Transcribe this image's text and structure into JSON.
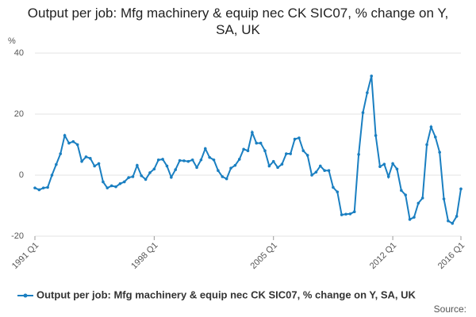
{
  "chart_data": {
    "type": "line",
    "title": "Output per job: Mfg machinery & equip nec CK SIC07, % change on Y, SA, UK",
    "y_label": "%",
    "source": "Source:",
    "categories": [
      "1991 Q1",
      null,
      null,
      null,
      null,
      null,
      null,
      null,
      null,
      null,
      null,
      null,
      null,
      null,
      null,
      null,
      null,
      null,
      null,
      null,
      null,
      null,
      null,
      null,
      null,
      null,
      null,
      null,
      "1998 Q1",
      null,
      null,
      null,
      null,
      null,
      null,
      null,
      null,
      null,
      null,
      null,
      null,
      null,
      null,
      null,
      null,
      null,
      null,
      null,
      null,
      null,
      null,
      null,
      null,
      null,
      null,
      null,
      "2005 Q1",
      null,
      null,
      null,
      null,
      null,
      null,
      null,
      null,
      null,
      null,
      null,
      null,
      null,
      null,
      null,
      null,
      null,
      null,
      null,
      null,
      null,
      null,
      null,
      null,
      null,
      null,
      null,
      "2012 Q1",
      null,
      null,
      null,
      null,
      null,
      null,
      null,
      null,
      null,
      null,
      null,
      null,
      null,
      null,
      null,
      "2016 Q1"
    ],
    "series": [
      {
        "name": "Output per job: Mfg machinery & equip nec CK SIC07, % change on Y, SA, UK",
        "color": "#1a7fc1",
        "values": [
          -4.2,
          -4.8,
          -4.2,
          -4,
          0,
          3.5,
          7,
          13,
          10.5,
          11,
          10,
          4.5,
          6,
          5.5,
          3,
          3.8,
          -2.2,
          -4.2,
          -3.5,
          -3.8,
          -2.8,
          -2.2,
          -0.8,
          -0.5,
          3.2,
          -0.2,
          -1.4,
          0.8,
          2,
          5,
          5.2,
          3,
          -0.7,
          1.8,
          4.8,
          4.7,
          4.5,
          5,
          2.5,
          5,
          8.7,
          5.8,
          5,
          1.5,
          -0.5,
          -1.2,
          2.3,
          3.2,
          5.2,
          8.5,
          8,
          14,
          10.5,
          10.5,
          8,
          3,
          4.5,
          2.5,
          3.6,
          7,
          7,
          11.8,
          12.2,
          8,
          6.5,
          0,
          1,
          3,
          1.5,
          1.5,
          -4,
          -5.5,
          -13,
          -12.8,
          -12.7,
          -12,
          6.8,
          20.5,
          27,
          32.5,
          13,
          2.8,
          3.6,
          -0.5,
          3.8,
          2,
          -5,
          -6.5,
          -14.5,
          -13.8,
          -9.2,
          -7.5,
          10,
          15.8,
          12.5,
          7.5,
          -7.8,
          -15,
          -15.8,
          -13.5,
          -4.5
        ]
      }
    ],
    "ylim": [
      -20,
      40
    ],
    "yticks": [
      -20,
      0,
      20,
      40
    ],
    "grid": true
  }
}
